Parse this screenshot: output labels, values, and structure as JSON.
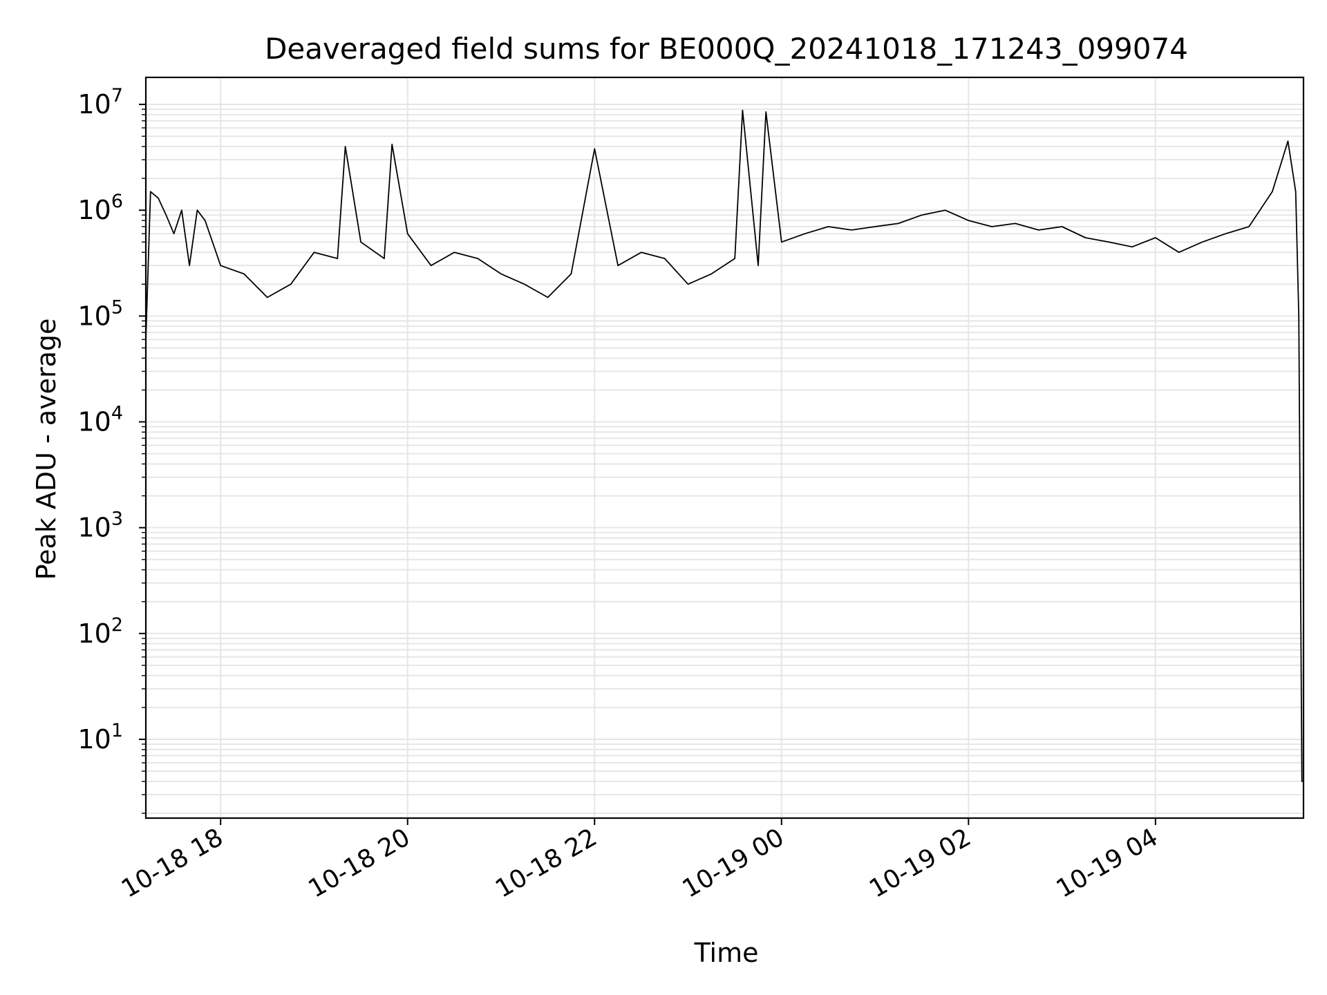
{
  "chart_data": {
    "type": "line",
    "title": "Deaveraged field sums for BE000Q_20241018_171243_099074",
    "xlabel": "Time",
    "ylabel": "Peak ADU - average",
    "yscale": "log",
    "ylim": [
      1.8,
      18000000
    ],
    "xlim": [
      "2024-10-18 17:12",
      "2024-10-19 05:35"
    ],
    "grid": true,
    "legend": "none",
    "line_color": "#000000",
    "grid_color": "#e6e6e6",
    "x_ticks": [
      {
        "t": "2024-10-18 18:00",
        "label": "10-18 18"
      },
      {
        "t": "2024-10-18 20:00",
        "label": "10-18 20"
      },
      {
        "t": "2024-10-18 22:00",
        "label": "10-18 22"
      },
      {
        "t": "2024-10-19 00:00",
        "label": "10-19 00"
      },
      {
        "t": "2024-10-19 02:00",
        "label": "10-19 02"
      },
      {
        "t": "2024-10-19 04:00",
        "label": "10-19 04"
      }
    ],
    "y_ticks": [
      {
        "exp": 1,
        "label": "10",
        "sup": "1"
      },
      {
        "exp": 2,
        "label": "10",
        "sup": "2"
      },
      {
        "exp": 3,
        "label": "10",
        "sup": "3"
      },
      {
        "exp": 4,
        "label": "10",
        "sup": "4"
      },
      {
        "exp": 5,
        "label": "10",
        "sup": "5"
      },
      {
        "exp": 6,
        "label": "10",
        "sup": "6"
      },
      {
        "exp": 7,
        "label": "10",
        "sup": "7"
      }
    ],
    "series": [
      {
        "x": [
          "2024-10-18 17:12",
          "2024-10-18 17:15",
          "2024-10-18 17:20",
          "2024-10-18 17:25",
          "2024-10-18 17:30",
          "2024-10-18 17:35",
          "2024-10-18 17:40",
          "2024-10-18 17:45",
          "2024-10-18 17:50",
          "2024-10-18 18:00",
          "2024-10-18 18:15",
          "2024-10-18 18:30",
          "2024-10-18 18:45",
          "2024-10-18 19:00",
          "2024-10-18 19:15",
          "2024-10-18 19:20",
          "2024-10-18 19:30",
          "2024-10-18 19:45",
          "2024-10-18 19:50",
          "2024-10-18 20:00",
          "2024-10-18 20:15",
          "2024-10-18 20:30",
          "2024-10-18 20:45",
          "2024-10-18 21:00",
          "2024-10-18 21:15",
          "2024-10-18 21:30",
          "2024-10-18 21:45",
          "2024-10-18 22:00",
          "2024-10-18 22:15",
          "2024-10-18 22:30",
          "2024-10-18 22:45",
          "2024-10-18 23:00",
          "2024-10-18 23:15",
          "2024-10-18 23:30",
          "2024-10-18 23:35",
          "2024-10-18 23:45",
          "2024-10-18 23:50",
          "2024-10-19 00:00",
          "2024-10-19 00:15",
          "2024-10-19 00:30",
          "2024-10-19 00:45",
          "2024-10-19 01:00",
          "2024-10-19 01:15",
          "2024-10-19 01:30",
          "2024-10-19 01:45",
          "2024-10-19 02:00",
          "2024-10-19 02:15",
          "2024-10-19 02:30",
          "2024-10-19 02:45",
          "2024-10-19 03:00",
          "2024-10-19 03:15",
          "2024-10-19 03:30",
          "2024-10-19 03:45",
          "2024-10-19 04:00",
          "2024-10-19 04:15",
          "2024-10-19 04:30",
          "2024-10-19 04:45",
          "2024-10-19 05:00",
          "2024-10-19 05:15",
          "2024-10-19 05:25",
          "2024-10-19 05:30",
          "2024-10-19 05:32",
          "2024-10-19 05:34",
          "2024-10-19 05:35"
        ],
        "y": [
          60000,
          1500000,
          1300000,
          900000,
          600000,
          1000000,
          300000,
          1000000,
          800000,
          300000,
          250000,
          150000,
          200000,
          400000,
          350000,
          4000000,
          500000,
          350000,
          4200000,
          600000,
          300000,
          400000,
          350000,
          250000,
          200000,
          150000,
          250000,
          3800000,
          300000,
          400000,
          350000,
          200000,
          250000,
          350000,
          8800000,
          300000,
          8500000,
          500000,
          600000,
          700000,
          650000,
          700000,
          750000,
          900000,
          1000000,
          800000,
          700000,
          750000,
          650000,
          700000,
          550000,
          500000,
          450000,
          550000,
          400000,
          500000,
          600000,
          700000,
          1500000,
          4500000,
          1500000,
          100000,
          4,
          4
        ]
      }
    ]
  }
}
